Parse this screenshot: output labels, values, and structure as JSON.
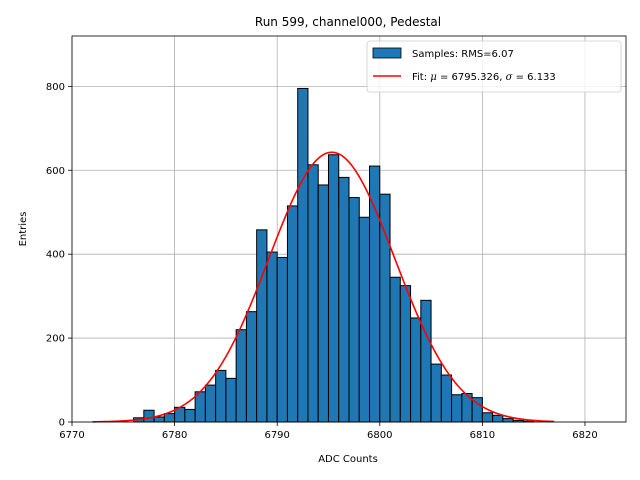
{
  "chart_data": {
    "type": "bar",
    "title": "Run 599, channel000, Pedestal",
    "xlabel": "ADC Counts",
    "ylabel": "Entries",
    "xlim": [
      6770,
      6824
    ],
    "ylim": [
      0,
      920
    ],
    "grid": true,
    "legend_position": "top-right",
    "x_ticks": [
      6770,
      6780,
      6790,
      6800,
      6810,
      6820
    ],
    "y_ticks": [
      0,
      200,
      400,
      600,
      800
    ],
    "histogram": {
      "name": "Samples: RMS=6.07",
      "color": "#1f77b4",
      "edgecolor": "#000000",
      "bin_width": 1,
      "bins": [
        {
          "x0": 6776,
          "value": 10
        },
        {
          "x0": 6777,
          "value": 28
        },
        {
          "x0": 6778,
          "value": 12
        },
        {
          "x0": 6779,
          "value": 20
        },
        {
          "x0": 6780,
          "value": 35
        },
        {
          "x0": 6781,
          "value": 30
        },
        {
          "x0": 6782,
          "value": 72
        },
        {
          "x0": 6783,
          "value": 88
        },
        {
          "x0": 6784,
          "value": 123
        },
        {
          "x0": 6785,
          "value": 104
        },
        {
          "x0": 6786,
          "value": 220
        },
        {
          "x0": 6787,
          "value": 263
        },
        {
          "x0": 6788,
          "value": 458
        },
        {
          "x0": 6789,
          "value": 405
        },
        {
          "x0": 6790,
          "value": 392
        },
        {
          "x0": 6791,
          "value": 515
        },
        {
          "x0": 6792,
          "value": 795
        },
        {
          "x0": 6793,
          "value": 613
        },
        {
          "x0": 6794,
          "value": 565
        },
        {
          "x0": 6795,
          "value": 637
        },
        {
          "x0": 6796,
          "value": 583
        },
        {
          "x0": 6797,
          "value": 535
        },
        {
          "x0": 6798,
          "value": 488
        },
        {
          "x0": 6799,
          "value": 610
        },
        {
          "x0": 6800,
          "value": 543
        },
        {
          "x0": 6801,
          "value": 345
        },
        {
          "x0": 6802,
          "value": 325
        },
        {
          "x0": 6803,
          "value": 248
        },
        {
          "x0": 6804,
          "value": 290
        },
        {
          "x0": 6805,
          "value": 138
        },
        {
          "x0": 6806,
          "value": 112
        },
        {
          "x0": 6807,
          "value": 65
        },
        {
          "x0": 6808,
          "value": 68
        },
        {
          "x0": 6809,
          "value": 58
        },
        {
          "x0": 6810,
          "value": 22
        },
        {
          "x0": 6811,
          "value": 16
        },
        {
          "x0": 6812,
          "value": 8
        },
        {
          "x0": 6813,
          "value": 4
        },
        {
          "x0": 6814,
          "value": 2
        }
      ]
    },
    "fit": {
      "label_prefix": "Fit: ",
      "label_mu": "μ",
      "label_mu_value": " = 6795.326, ",
      "label_sigma": "σ",
      "label_sigma_value": " = 6.133",
      "mu": 6795.326,
      "sigma": 6.133,
      "amplitude": 643,
      "x_range": [
        6772,
        6817
      ],
      "color": "#ff0000"
    }
  }
}
